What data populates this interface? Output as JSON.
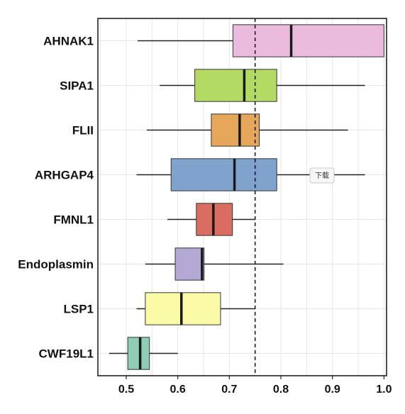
{
  "chart_data": {
    "type": "boxplot",
    "orientation": "horizontal",
    "categories": [
      "AHNAK1",
      "SIPA1",
      "FLII",
      "ARHGAP4",
      "FMNL1",
      "Endoplasmin",
      "LSP1",
      "CWF19L1"
    ],
    "boxes": [
      {
        "label": "AHNAK1",
        "whisker_low": 0.522,
        "q1": 0.707,
        "median": 0.82,
        "q3": 1.0,
        "whisker_high": 1.0,
        "color": "#EBBBDD"
      },
      {
        "label": "SIPA1",
        "whisker_low": 0.565,
        "q1": 0.633,
        "median": 0.729,
        "q3": 0.792,
        "whisker_high": 0.963,
        "color": "#B3DB64"
      },
      {
        "label": "FLII",
        "whisker_low": 0.54,
        "q1": 0.665,
        "median": 0.72,
        "q3": 0.758,
        "whisker_high": 0.93,
        "color": "#E6A75B"
      },
      {
        "label": "ARHGAP4",
        "whisker_low": 0.52,
        "q1": 0.587,
        "median": 0.71,
        "q3": 0.792,
        "whisker_high": 0.963,
        "color": "#7FA3CD"
      },
      {
        "label": "FMNL1",
        "whisker_low": 0.58,
        "q1": 0.636,
        "median": 0.669,
        "q3": 0.706,
        "whisker_high": 0.75,
        "color": "#DB6C62"
      },
      {
        "label": "Endoplasmin",
        "whisker_low": 0.537,
        "q1": 0.595,
        "median": 0.647,
        "q3": 0.651,
        "whisker_high": 0.805,
        "color": "#B3A9D4"
      },
      {
        "label": "LSP1",
        "whisker_low": 0.52,
        "q1": 0.537,
        "median": 0.607,
        "q3": 0.683,
        "whisker_high": 0.75,
        "color": "#FBFBA7"
      },
      {
        "label": "CWF19L1",
        "whisker_low": 0.467,
        "q1": 0.503,
        "median": 0.527,
        "q3": 0.545,
        "whisker_high": 0.6,
        "color": "#8FCDB4"
      }
    ],
    "reference_line": 0.75,
    "xlim": [
      0.445,
      1.005
    ],
    "x_ticks": [
      0.5,
      0.6,
      0.7,
      0.8,
      0.9,
      1.0
    ],
    "x_tick_labels": [
      "0.5",
      "0.6",
      "0.7",
      "0.8",
      "0.9",
      "1.0"
    ],
    "title": "",
    "xlabel": "",
    "ylabel": "",
    "grid": true
  },
  "overlay": {
    "tooltip_label": "下载"
  }
}
